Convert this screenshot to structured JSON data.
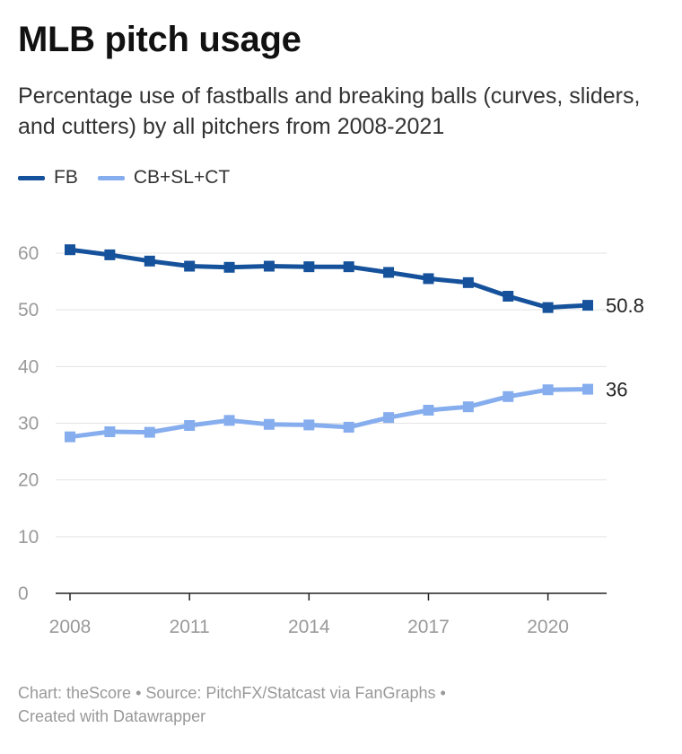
{
  "title": "MLB pitch usage",
  "subtitle": "Percentage use of fastballs and breaking balls (curves, sliders, and cutters) by all pitchers from 2008-2021",
  "footer": {
    "line1": "Chart: theScore • Source: PitchFX/Statcast via FanGraphs •",
    "line2": "Created with Datawrapper"
  },
  "chart_data": {
    "type": "line",
    "x": [
      2008,
      2009,
      2010,
      2011,
      2012,
      2013,
      2014,
      2015,
      2016,
      2017,
      2018,
      2019,
      2020,
      2021
    ],
    "x_ticks": [
      "2008",
      "2011",
      "2014",
      "2017",
      "2020"
    ],
    "y_ticks": [
      "0",
      "10",
      "20",
      "30",
      "40",
      "50",
      "60"
    ],
    "ylim": [
      0,
      60
    ],
    "grid": true,
    "legend_position": "top-left",
    "series": [
      {
        "name": "FB",
        "color": "#15529b",
        "values": [
          60.6,
          59.7,
          58.6,
          57.7,
          57.5,
          57.7,
          57.6,
          57.6,
          56.6,
          55.5,
          54.8,
          52.4,
          50.4,
          50.8
        ],
        "end_label": "50.8"
      },
      {
        "name": "CB+SL+CT",
        "color": "#86aded",
        "values": [
          27.6,
          28.5,
          28.4,
          29.6,
          30.5,
          29.8,
          29.7,
          29.3,
          31.0,
          32.3,
          32.9,
          34.7,
          35.9,
          36.0
        ],
        "end_label": "36"
      }
    ]
  }
}
